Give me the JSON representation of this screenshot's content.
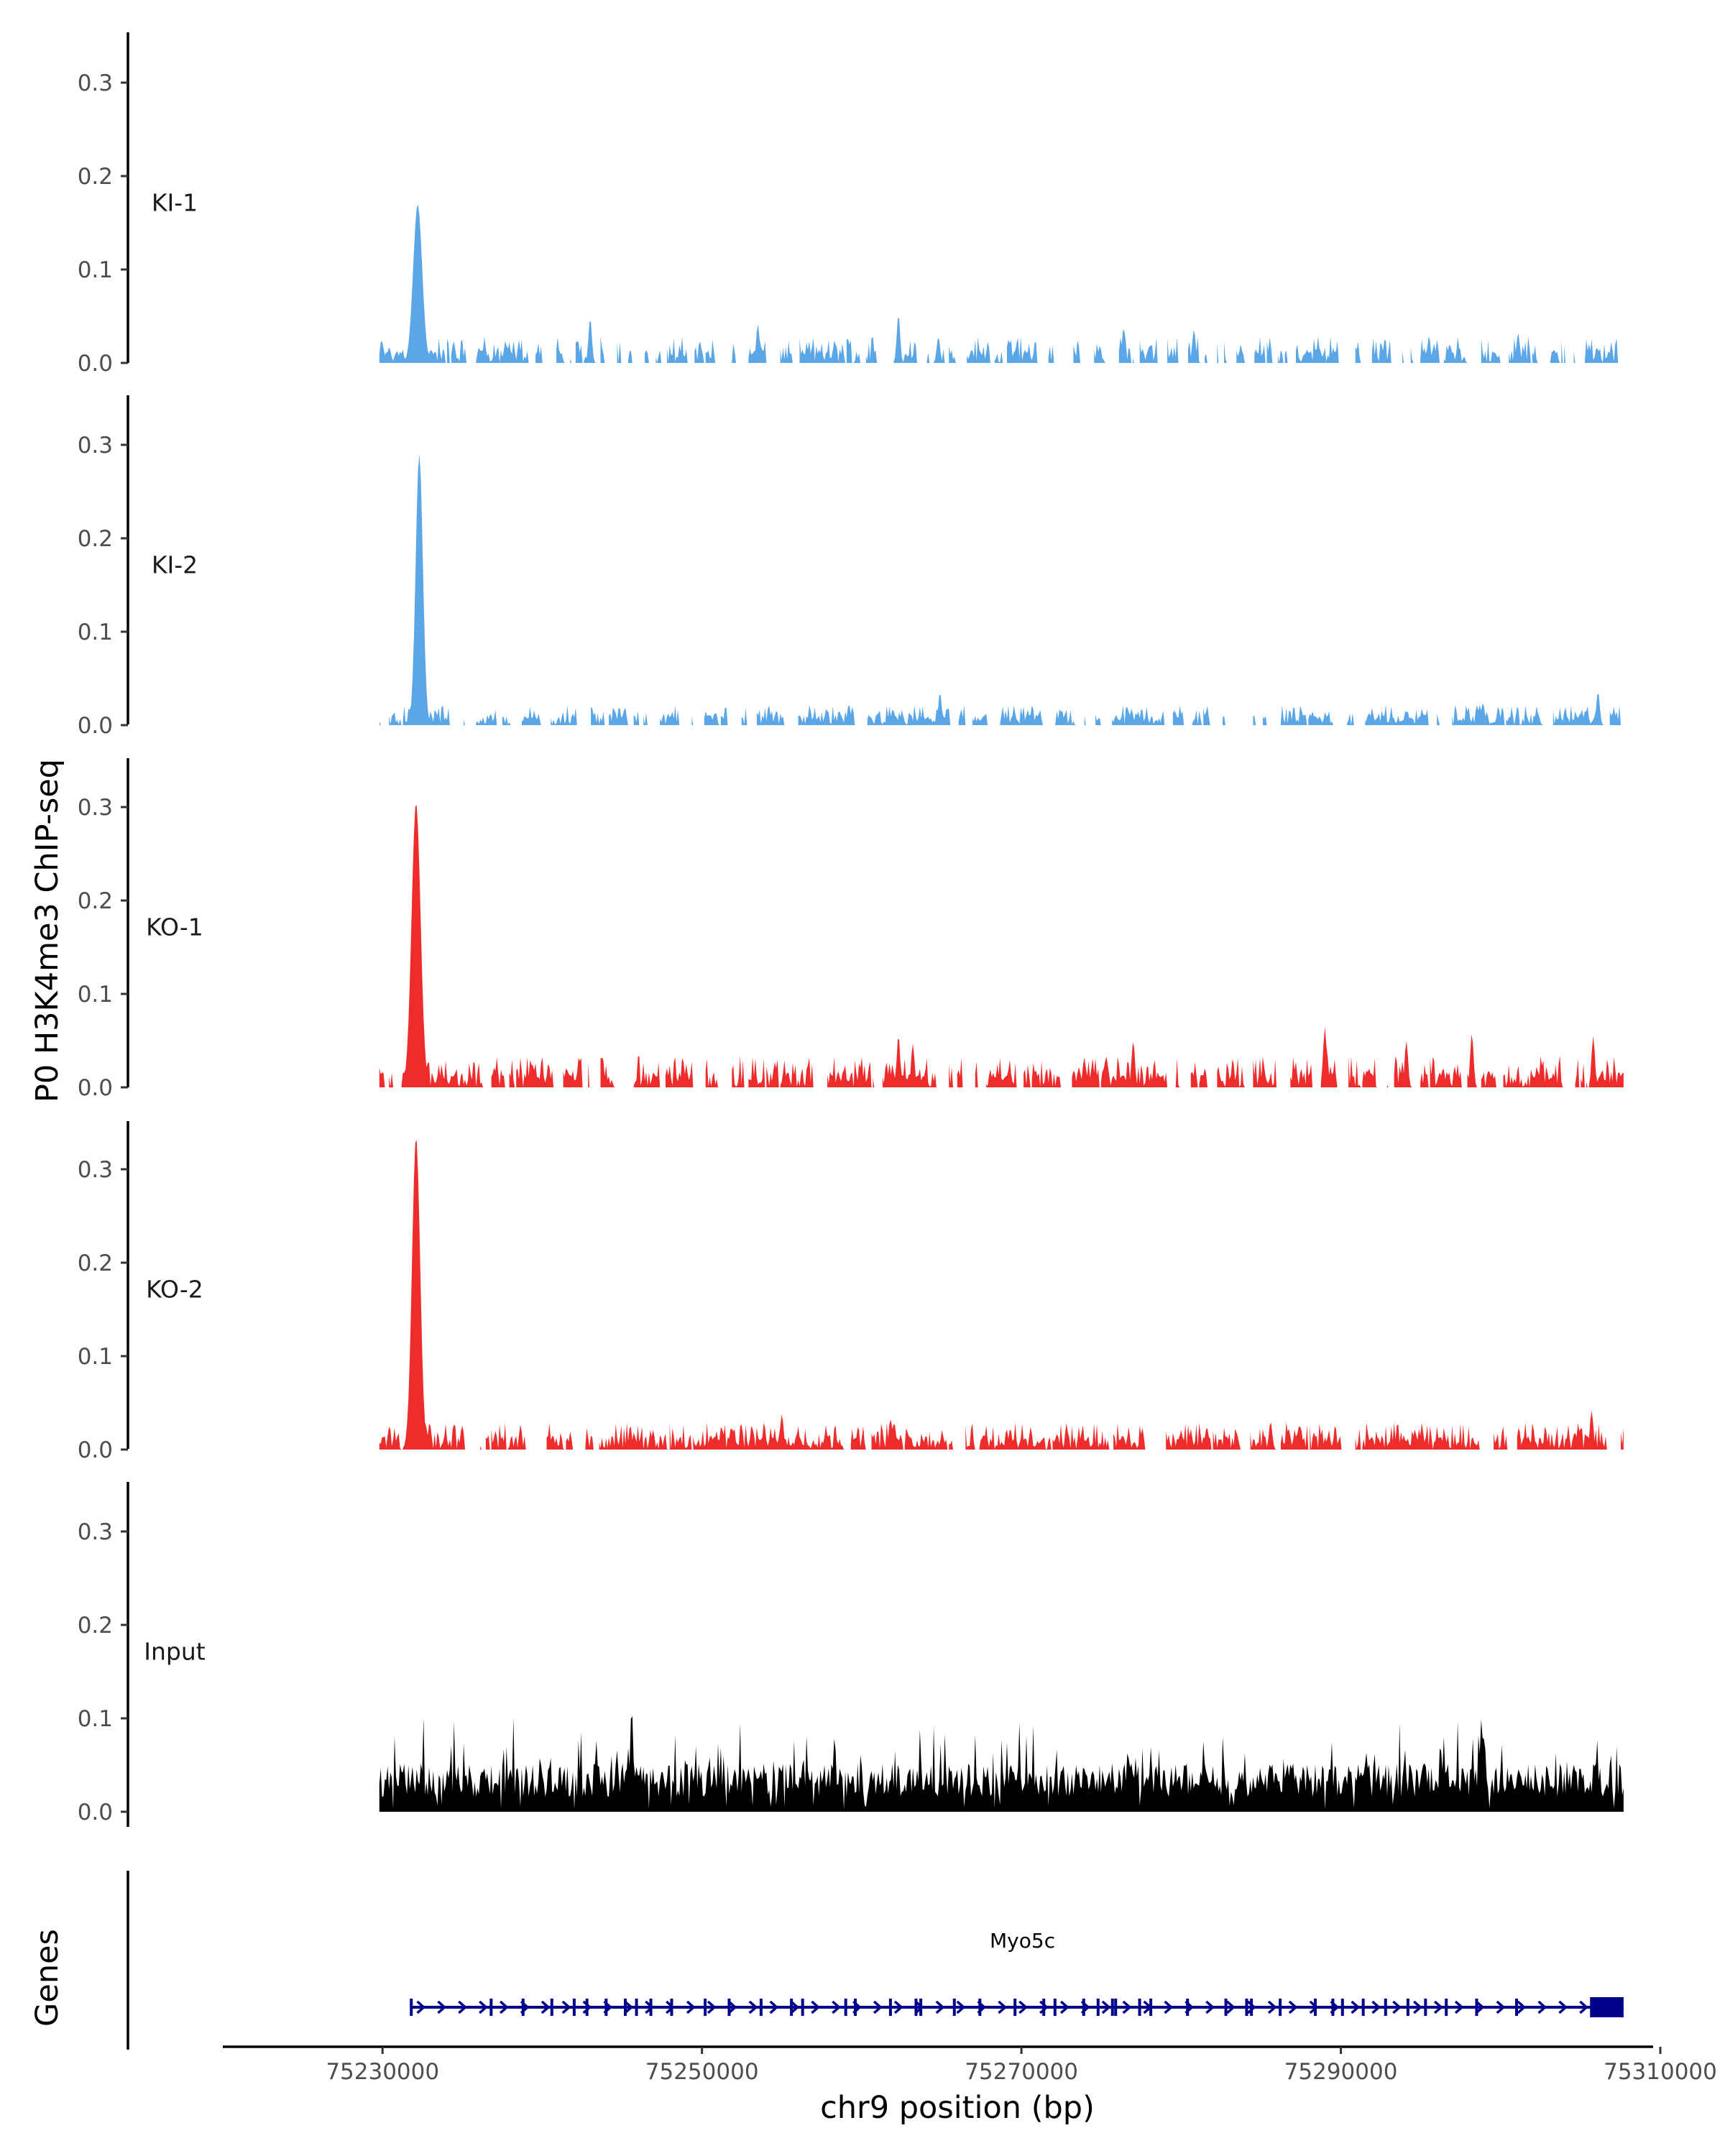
{
  "chart_data": {
    "type": "area",
    "ylabel": "P0 H3K4me3 ChIP-seq",
    "xlabel": "chr9 position (bp)",
    "genes_label": "Genes",
    "xlim": [
      75220000,
      75310000
    ],
    "x_ticks": [
      75230000,
      75250000,
      75270000,
      75290000,
      75310000
    ],
    "x_tick_labels": [
      "75230000",
      "75250000",
      "75270000",
      "75290000",
      "75310000"
    ],
    "ylim": [
      0,
      0.35
    ],
    "y_ticks": [
      0.0,
      0.1,
      0.2,
      0.3
    ],
    "y_tick_labels": [
      "0.0",
      "0.1",
      "0.2",
      "0.3"
    ],
    "signal_start": 75229800,
    "signal_end": 75307700,
    "tracks": [
      {
        "name": "KI-1",
        "color": "#5aa6e6",
        "peak": {
          "position": 75232200,
          "value": 0.17,
          "halfwidth": 500
        },
        "small_peaks": [
          {
            "position": 75243000,
            "value": 0.048
          },
          {
            "position": 75253500,
            "value": 0.042
          },
          {
            "position": 75262300,
            "value": 0.052
          },
          {
            "position": 75264800,
            "value": 0.028
          },
          {
            "position": 75276400,
            "value": 0.038
          },
          {
            "position": 75280800,
            "value": 0.036
          },
          {
            "position": 75301100,
            "value": 0.032
          }
        ],
        "base_level": 0.012,
        "gap_rate": 0.32
      },
      {
        "name": "KI-2",
        "color": "#5aa6e6",
        "peak": {
          "position": 75232300,
          "value": 0.29,
          "halfwidth": 400
        },
        "small_peaks": [
          {
            "position": 75264900,
            "value": 0.035
          },
          {
            "position": 75298900,
            "value": 0.024
          },
          {
            "position": 75306100,
            "value": 0.036
          }
        ],
        "base_level": 0.009,
        "gap_rate": 0.25
      },
      {
        "name": "KO-1",
        "color": "#ee2c2c",
        "peak": {
          "position": 75232100,
          "value": 0.305,
          "halfwidth": 500
        },
        "small_peaks": [
          {
            "position": 75262300,
            "value": 0.056
          },
          {
            "position": 75263200,
            "value": 0.047
          },
          {
            "position": 75277000,
            "value": 0.05
          },
          {
            "position": 75289000,
            "value": 0.065
          },
          {
            "position": 75294100,
            "value": 0.05
          },
          {
            "position": 75298200,
            "value": 0.058
          },
          {
            "position": 75305800,
            "value": 0.055
          }
        ],
        "base_level": 0.014,
        "gap_rate": 0.2
      },
      {
        "name": "KO-2",
        "color": "#ee2c2c",
        "peak": {
          "position": 75232100,
          "value": 0.335,
          "halfwidth": 450
        },
        "small_peaks": [
          {
            "position": 75255000,
            "value": 0.038
          },
          {
            "position": 75261800,
            "value": 0.033
          },
          {
            "position": 75285600,
            "value": 0.03
          },
          {
            "position": 75305700,
            "value": 0.042
          }
        ],
        "base_level": 0.012,
        "gap_rate": 0.1
      },
      {
        "name": "Input",
        "color": "#000000",
        "peak": null,
        "small_peaks": [
          {
            "position": 75245600,
            "value": 0.11
          },
          {
            "position": 75258300,
            "value": 0.08
          },
          {
            "position": 75298800,
            "value": 0.1
          }
        ],
        "base_level": 0.04,
        "gap_rate": 0
      }
    ],
    "gene": {
      "name": "Myo5c",
      "strand": "+",
      "start": 75231800,
      "end": 75307700,
      "color": "#00008b",
      "exon_positions": [
        75231800,
        75236800,
        75238800,
        75240600,
        75242000,
        75242800,
        75244000,
        75245200,
        75245900,
        75246800,
        75248100,
        75250200,
        75251700,
        75253700,
        75255600,
        75256300,
        75259000,
        75259600,
        75261800,
        75263400,
        75263700,
        75265800,
        75267400,
        75269600,
        75271400,
        75272100,
        75273900,
        75274800,
        75275700,
        75275900,
        75277400,
        75278100,
        75280400,
        75282800,
        75284100,
        75284400,
        75286200,
        75288400,
        75289500,
        75290100,
        75291400,
        75292800,
        75294200,
        75295300,
        75296600,
        75298500,
        75301000
      ],
      "utr_end_block": [
        75305600,
        75307700
      ]
    }
  }
}
